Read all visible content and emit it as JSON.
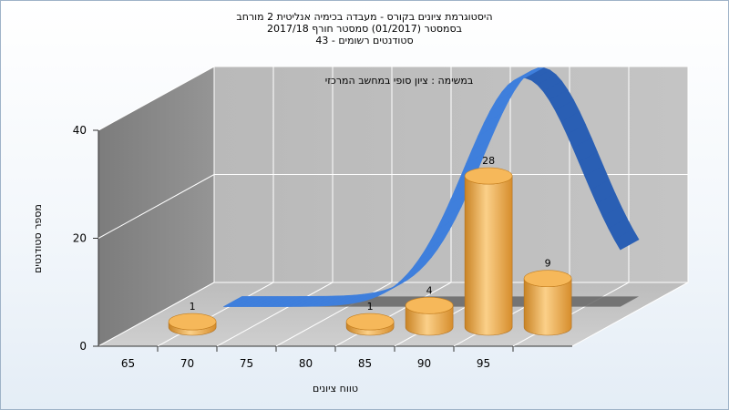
{
  "chart_data": {
    "type": "bar",
    "title_lines": [
      "היסטוגרמת ציונים בקורס - מעבדה בכימיה אנליטית 2 מורחב",
      "בסמסטר  (01/2017)  סמסטר חורף 2017/18",
      "סטודנטים רשומים - 43"
    ],
    "subtitle": "במשימה : ציון סופי במחשב המרכזי",
    "xlabel": "טווח ציונים",
    "ylabel": "מספר סטודנטים",
    "x_ticks": [
      "65",
      "70",
      "75",
      "80",
      "85",
      "90",
      "95"
    ],
    "y_ticks": [
      "0",
      "20",
      "40"
    ],
    "ylim": [
      0,
      40
    ],
    "bars": [
      {
        "x": 67.5,
        "value": 1
      },
      {
        "x": 82.5,
        "value": 1
      },
      {
        "x": 87.5,
        "value": 4
      },
      {
        "x": 92.5,
        "value": 28
      },
      {
        "x": 97.5,
        "value": 9
      }
    ],
    "curve_color": "#2f6fcf",
    "bar_color": "#f0a848"
  }
}
